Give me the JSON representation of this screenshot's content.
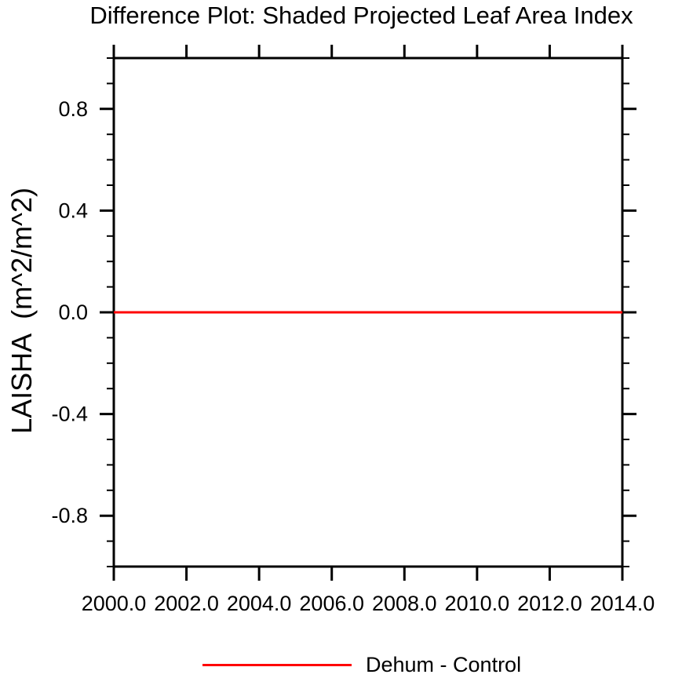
{
  "chart_data": {
    "type": "line",
    "title": "Difference Plot: Shaded Projected Leaf Area Index",
    "xlabel": "",
    "ylabel": "LAISHA  (m^2/m^2)",
    "xlim": [
      2000.0,
      2014.0
    ],
    "ylim": [
      -1.0,
      1.0
    ],
    "x_major_ticks": [
      2000.0,
      2002.0,
      2004.0,
      2006.0,
      2008.0,
      2010.0,
      2012.0,
      2014.0
    ],
    "x_tick_labels": [
      "2000.0",
      "2002.0",
      "2004.0",
      "2006.0",
      "2008.0",
      "2010.0",
      "2012.0",
      "2014.0"
    ],
    "y_major_ticks": [
      0.8,
      0.4,
      0.0,
      -0.4,
      -0.8
    ],
    "y_tick_labels": [
      "0.8",
      "0.4",
      "0.0",
      "-0.4",
      "-0.8"
    ],
    "y_minor_step": 0.1,
    "grid": false,
    "axis_color": "#000000",
    "background_color": "#ffffff",
    "series": [
      {
        "name": "Dehum - Control",
        "color": "#ff0000",
        "x": [
          2000.0,
          2014.0
        ],
        "y": [
          0.0,
          0.0
        ]
      }
    ],
    "legend": {
      "position": "bottom-center",
      "entries": [
        {
          "label": "Dehum - Control",
          "color": "#ff0000"
        }
      ]
    }
  }
}
